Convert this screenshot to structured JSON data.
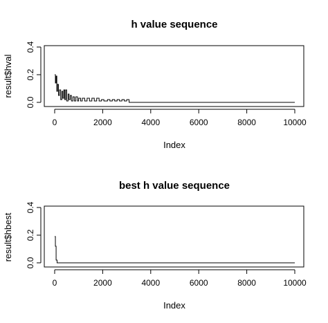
{
  "chart_data": [
    {
      "type": "line",
      "title": "h value sequence",
      "xlabel": "Index",
      "ylabel": "result$hval",
      "xlim": [
        0,
        10000
      ],
      "ylim": [
        0,
        0.4
      ],
      "xticks": [
        0,
        2000,
        4000,
        6000,
        8000,
        10000
      ],
      "yticks": [
        0.0,
        0.2,
        0.4
      ],
      "xtick_labels": [
        "0",
        "2000",
        "4000",
        "6000",
        "8000",
        "10000"
      ],
      "ytick_labels": [
        "0.0",
        "0.2",
        "0.4"
      ],
      "grid": false,
      "line_type": "step",
      "series": [
        {
          "x": [
            0,
            30,
            30,
            60,
            60,
            90,
            90,
            120,
            120,
            160,
            160,
            200,
            200,
            250,
            250,
            300,
            300,
            340,
            340,
            380,
            380,
            420,
            420,
            460,
            460,
            500,
            500,
            560,
            560,
            600,
            600,
            650,
            650,
            700,
            700,
            760,
            760,
            820,
            820,
            880,
            880,
            950,
            950,
            1000,
            1000,
            1080,
            1080,
            1150,
            1150,
            1250,
            1250,
            1350,
            1350,
            1450,
            1450,
            1550,
            1550,
            1650,
            1650,
            1750,
            1750,
            1850,
            1850,
            1950,
            1950,
            2050,
            2050,
            2200,
            2200,
            2300,
            2300,
            2400,
            2400,
            2500,
            2500,
            2600,
            2600,
            2700,
            2700,
            2800,
            2800,
            2900,
            2900,
            3000,
            3000,
            3100,
            3100,
            10000
          ],
          "values": [
            0.2,
            0.2,
            0.14,
            0.14,
            0.19,
            0.19,
            0.08,
            0.08,
            0.13,
            0.13,
            0.05,
            0.05,
            0.09,
            0.09,
            0.02,
            0.02,
            0.08,
            0.08,
            0.03,
            0.03,
            0.09,
            0.09,
            0.02,
            0.02,
            0.09,
            0.09,
            0.01,
            0.01,
            0.06,
            0.06,
            0.02,
            0.02,
            0.05,
            0.05,
            0.01,
            0.01,
            0.04,
            0.04,
            0.01,
            0.01,
            0.04,
            0.04,
            0.01,
            0.01,
            0.03,
            0.03,
            0.01,
            0.01,
            0.03,
            0.03,
            0.01,
            0.01,
            0.03,
            0.03,
            0.01,
            0.01,
            0.03,
            0.03,
            0.01,
            0.01,
            0.03,
            0.03,
            0.01,
            0.01,
            0.02,
            0.02,
            0.01,
            0.01,
            0.02,
            0.02,
            0.01,
            0.01,
            0.02,
            0.02,
            0.01,
            0.01,
            0.02,
            0.02,
            0.01,
            0.01,
            0.02,
            0.02,
            0.01,
            0.01,
            0.02,
            0.02,
            0.0,
            0.0
          ]
        }
      ]
    },
    {
      "type": "line",
      "title": "best h value sequence",
      "xlabel": "Index",
      "ylabel": "result$hbest",
      "xlim": [
        0,
        10000
      ],
      "ylim": [
        0,
        0.4
      ],
      "xticks": [
        0,
        2000,
        4000,
        6000,
        8000,
        10000
      ],
      "yticks": [
        0.0,
        0.2,
        0.4
      ],
      "xtick_labels": [
        "0",
        "2000",
        "4000",
        "6000",
        "8000",
        "10000"
      ],
      "ytick_labels": [
        "0.0",
        "0.2",
        "0.4"
      ],
      "grid": false,
      "line_type": "step",
      "series": [
        {
          "x": [
            0,
            30,
            30,
            60,
            60,
            100,
            100,
            10000
          ],
          "values": [
            0.19,
            0.19,
            0.12,
            0.12,
            0.02,
            0.02,
            0.0,
            0.0
          ]
        }
      ]
    }
  ]
}
